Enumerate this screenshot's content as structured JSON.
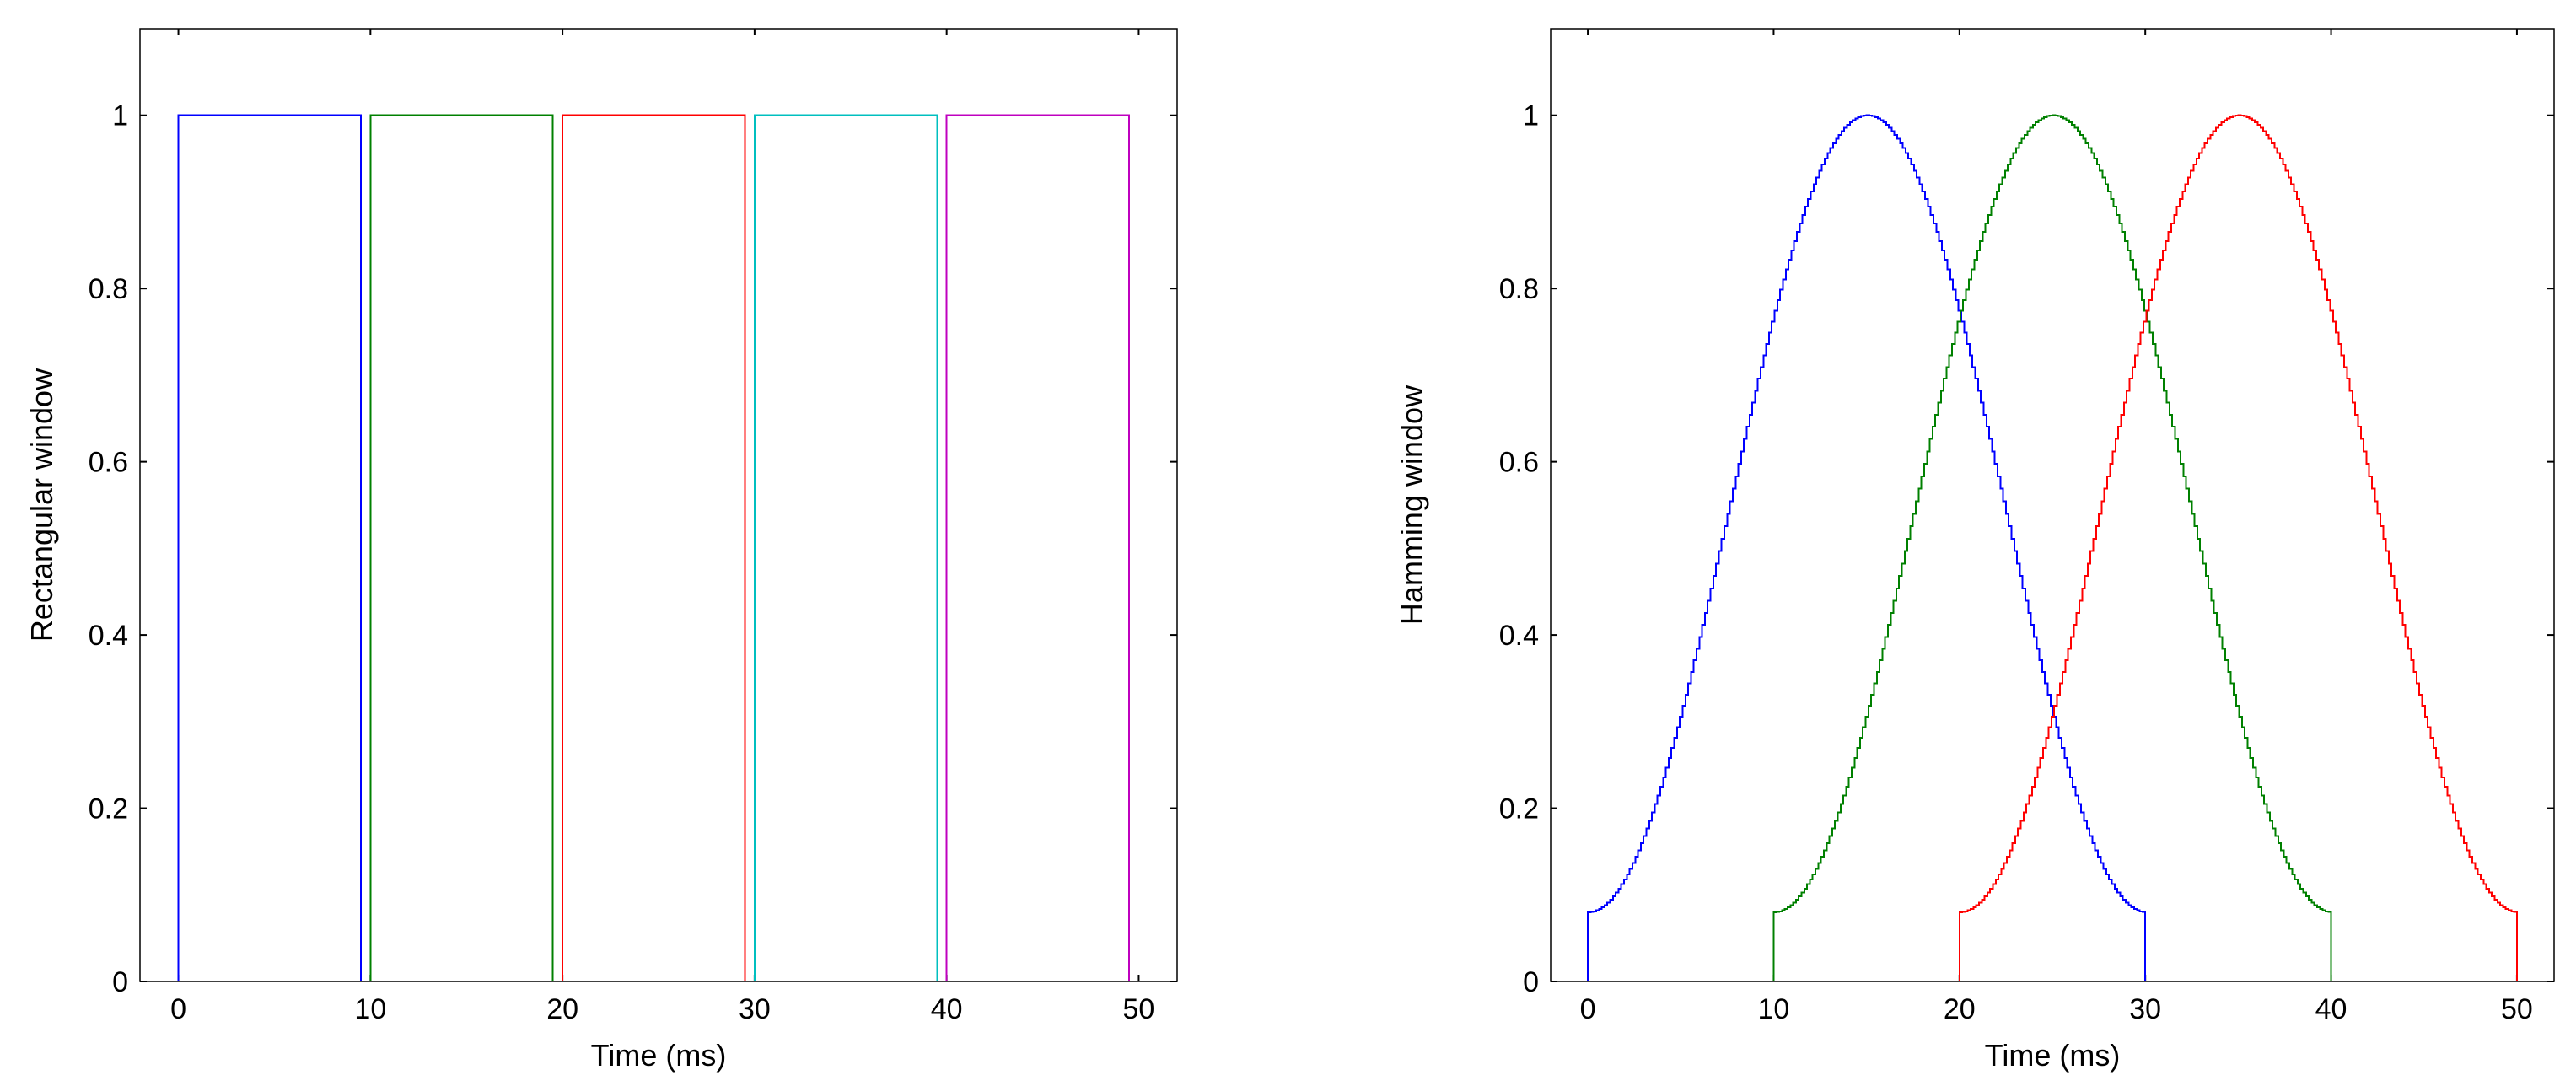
{
  "chart_data": [
    {
      "type": "line",
      "title": "",
      "xlabel": "Time (ms)",
      "ylabel": "Rectangular window",
      "xlim": [
        -2,
        52
      ],
      "ylim": [
        0,
        1.1
      ],
      "xticks": [
        0,
        10,
        20,
        30,
        40,
        50
      ],
      "yticks": [
        0,
        0.2,
        0.4,
        0.6,
        0.8,
        1
      ],
      "xtick_labels": [
        "0",
        "10",
        "20",
        "30",
        "40",
        "50"
      ],
      "ytick_labels": [
        "0",
        "0.2",
        "0.4",
        "0.6",
        "0.8",
        "1"
      ],
      "grid": false,
      "window": "rectangular",
      "series": [
        {
          "color": "#0000ff",
          "start": 0,
          "end": 9.5,
          "values": [
            0,
            1,
            1,
            0
          ],
          "x": [
            0,
            0,
            9.5,
            9.5
          ]
        },
        {
          "color": "#008000",
          "start": 10,
          "end": 19.5,
          "values": [
            0,
            1,
            1,
            0
          ],
          "x": [
            10,
            10,
            19.5,
            19.5
          ]
        },
        {
          "color": "#ff0000",
          "start": 20,
          "end": 29.5,
          "values": [
            0,
            1,
            1,
            0
          ],
          "x": [
            20,
            20,
            29.5,
            29.5
          ]
        },
        {
          "color": "#00bfbf",
          "start": 30,
          "end": 39.5,
          "values": [
            0,
            1,
            1,
            0
          ],
          "x": [
            30,
            30,
            39.5,
            39.5
          ]
        },
        {
          "color": "#bf00bf",
          "start": 40,
          "end": 49.5,
          "values": [
            0,
            1,
            1,
            0
          ],
          "x": [
            40,
            40,
            49.5,
            49.5
          ]
        }
      ]
    },
    {
      "type": "line",
      "title": "",
      "xlabel": "Time (ms)",
      "ylabel": "Hamming window",
      "xlim": [
        -2,
        52
      ],
      "ylim": [
        0,
        1.1
      ],
      "xticks": [
        0,
        10,
        20,
        30,
        40,
        50
      ],
      "yticks": [
        0,
        0.2,
        0.4,
        0.6,
        0.8,
        1
      ],
      "xtick_labels": [
        "0",
        "10",
        "20",
        "30",
        "40",
        "50"
      ],
      "ytick_labels": [
        "0",
        "0.2",
        "0.4",
        "0.6",
        "0.8",
        "1"
      ],
      "grid": false,
      "window": "hamming",
      "hamming_min": 0.08,
      "hamming_max": 1,
      "series": [
        {
          "color": "#0000ff",
          "start": 0,
          "end": 30
        },
        {
          "color": "#008000",
          "start": 10,
          "end": 40
        },
        {
          "color": "#ff0000",
          "start": 20,
          "end": 50
        }
      ]
    }
  ]
}
